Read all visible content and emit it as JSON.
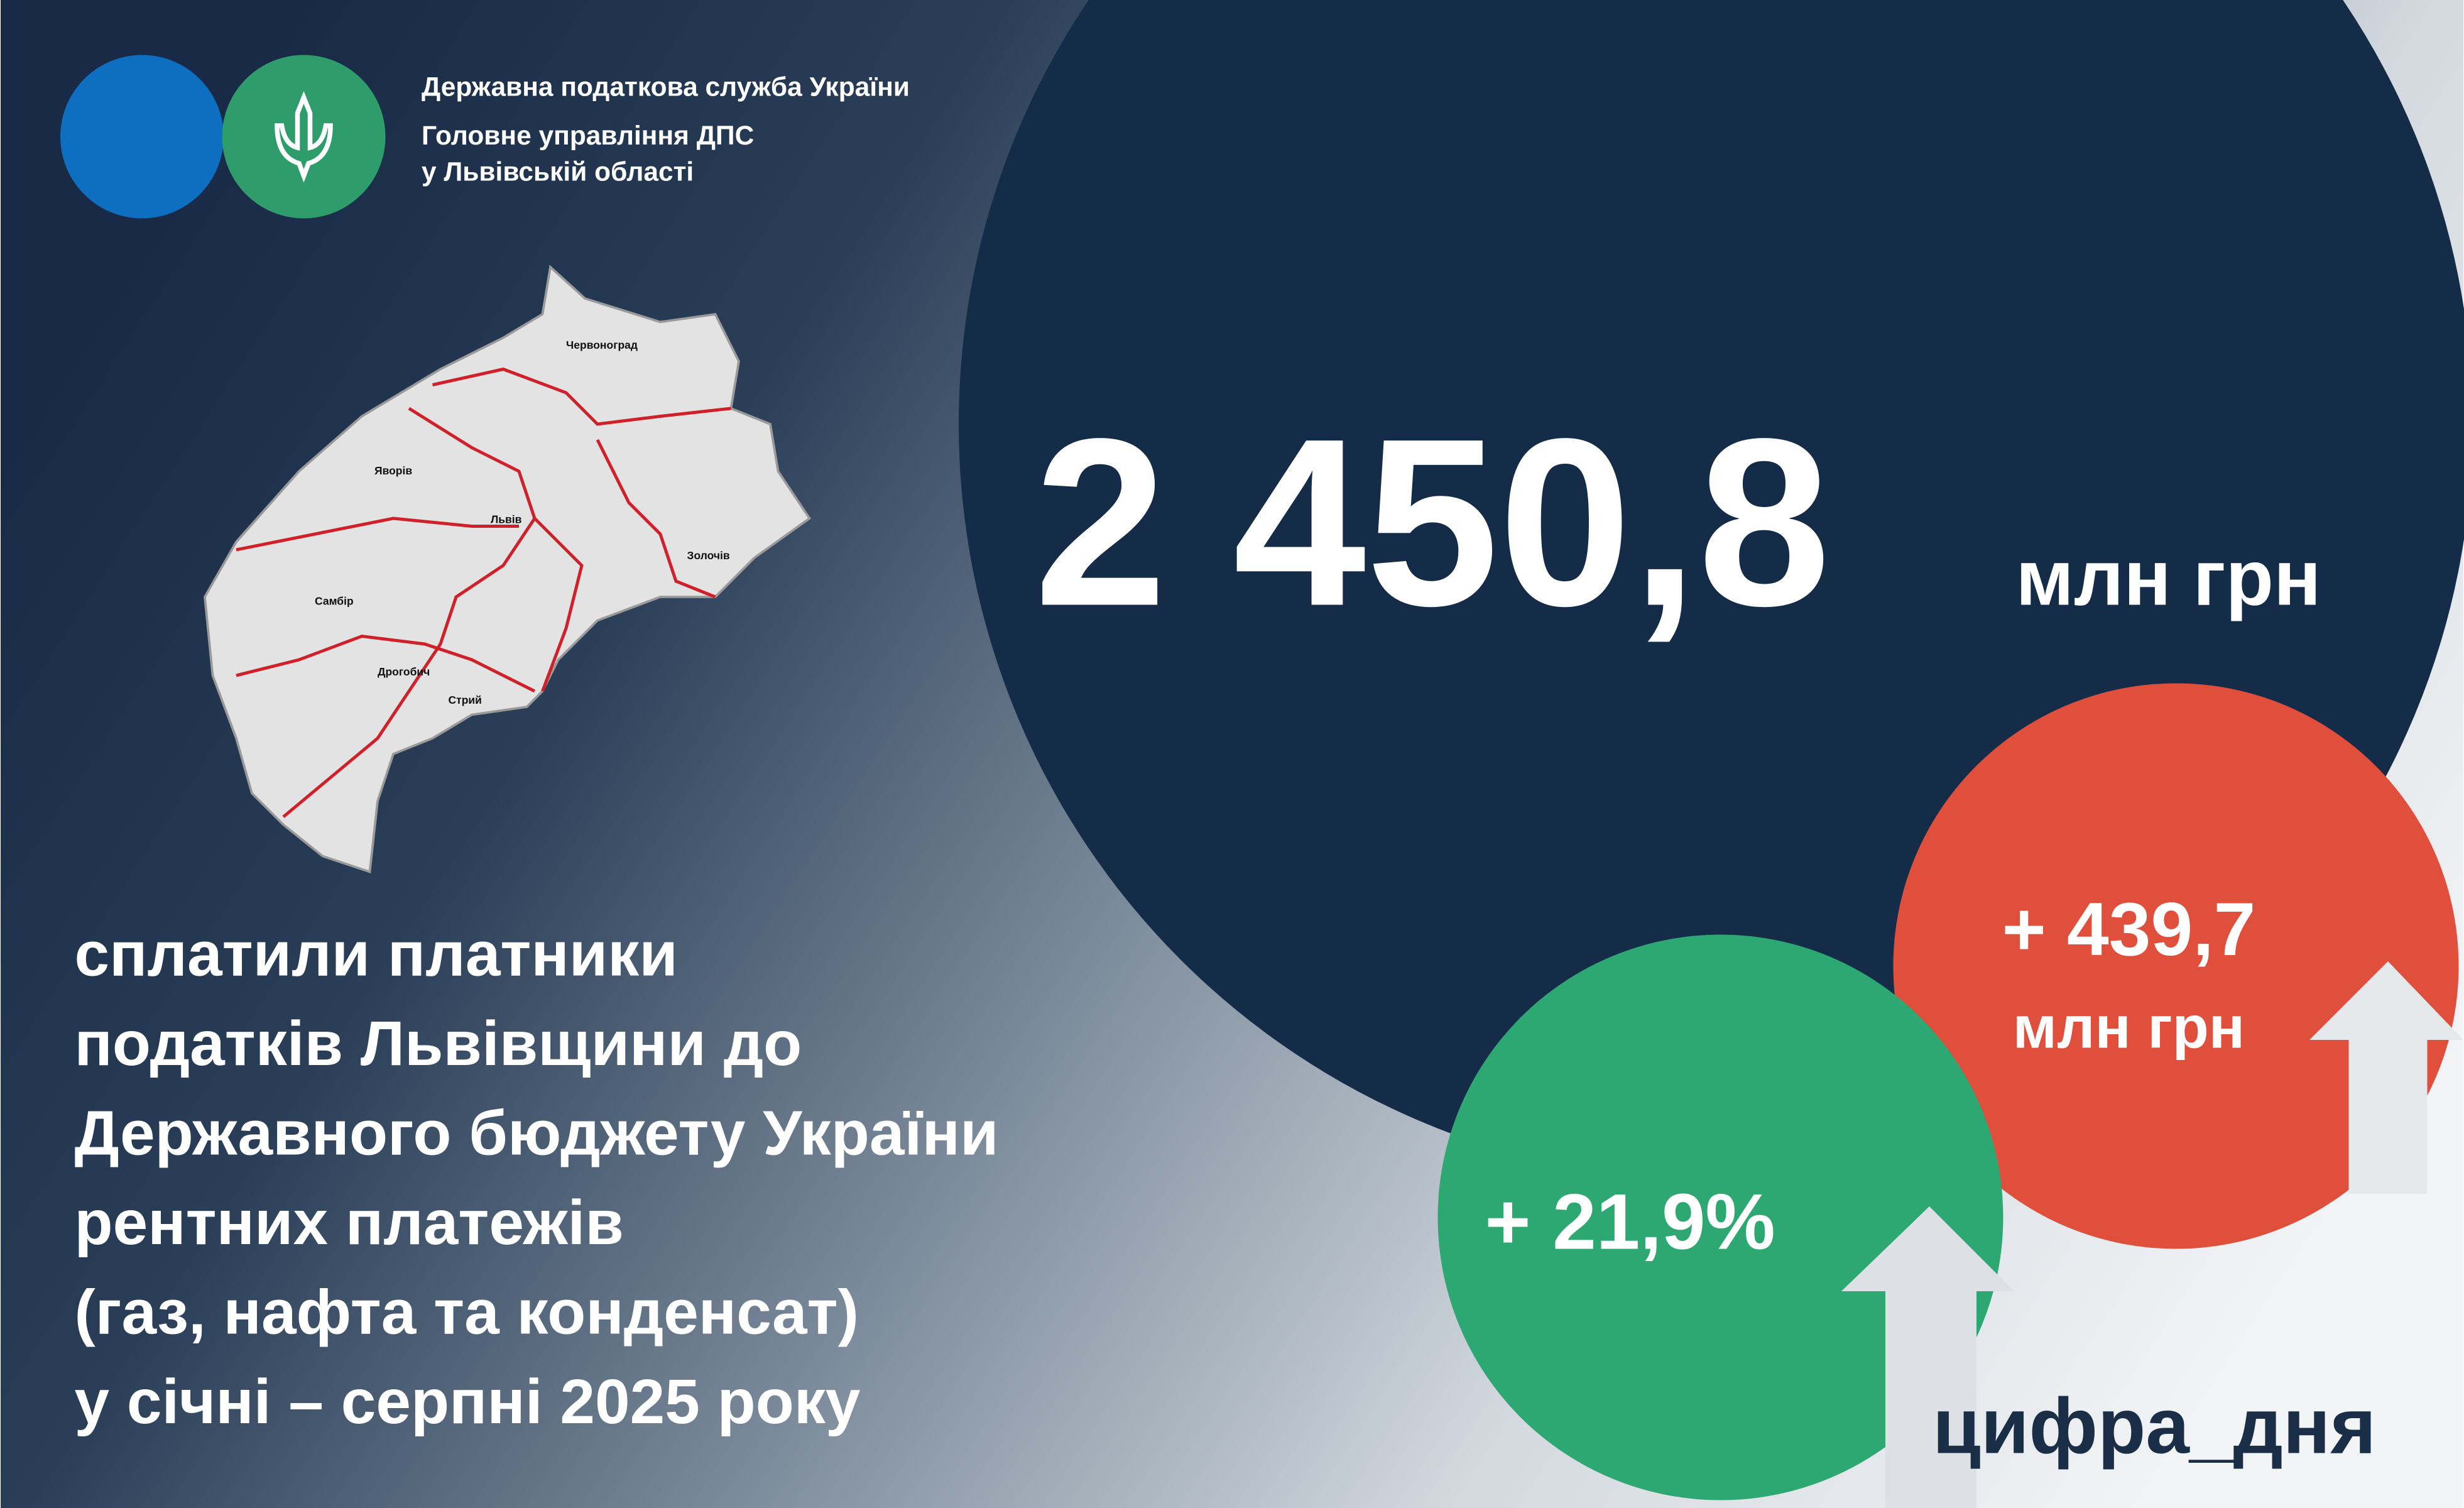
{
  "header": {
    "lines": [
      "Державна податкова служба України",
      "Головне управління ДПС",
      "у Львівській області"
    ]
  },
  "main": {
    "value": "2 450,8",
    "unit": "млн грн"
  },
  "increase": {
    "value": "+ 439,7",
    "unit": "млн грн"
  },
  "growth": {
    "value": "+ 21,9%"
  },
  "body": {
    "lines": [
      "сплатили платники",
      "податків Львівщини до",
      "Державного бюджету України",
      "рентних платежів",
      "(газ, нафта та конденсат)",
      "у січні – серпні 2025 року"
    ]
  },
  "hashtag": "цифра_дня",
  "map": {
    "labels": [
      "Червоноград",
      "Яворів",
      "Львів",
      "Золочів",
      "Самбір",
      "Дрогобич",
      "Стрий"
    ]
  }
}
